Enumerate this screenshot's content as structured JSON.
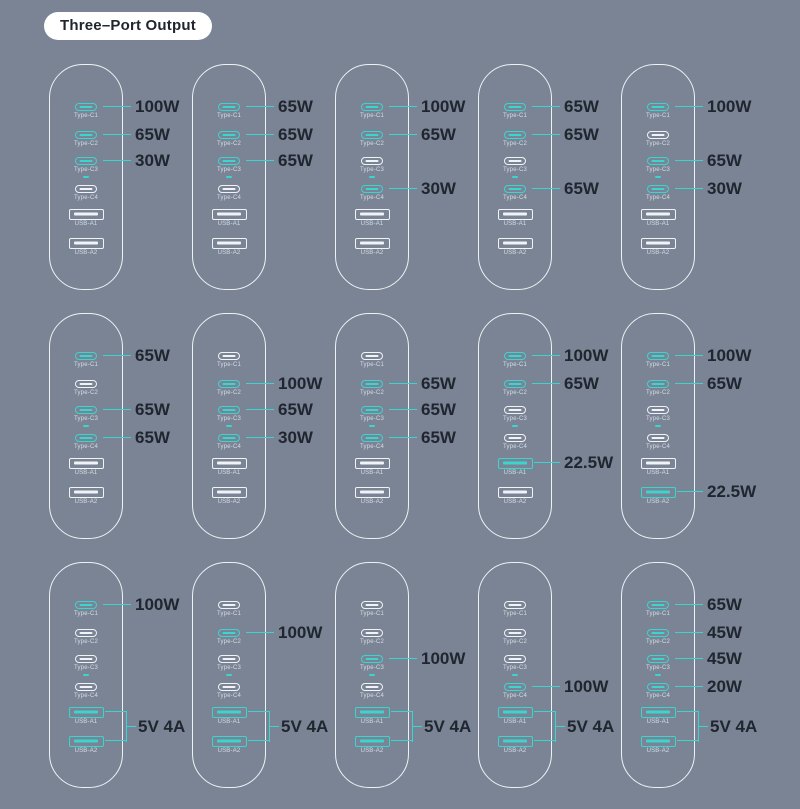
{
  "title": "Three–Port Output",
  "colors": {
    "background": "#7a8495",
    "accent": "#3bd5cf",
    "watt_text": "#20262f",
    "port_inactive": "#f0f4f7",
    "port_label": "#d5dce4",
    "body_outline": "#eef2f6",
    "title_bg": "#ffffff"
  },
  "ports": [
    {
      "key": "c1",
      "label": "Type-C1",
      "kind": "typec"
    },
    {
      "key": "c2",
      "label": "Type-C2",
      "kind": "typec"
    },
    {
      "key": "c3",
      "label": "Type-C3",
      "kind": "typec"
    },
    {
      "key": "c4",
      "label": "Type-C4",
      "kind": "typec"
    },
    {
      "key": "a1",
      "label": "USB-A1",
      "kind": "usba"
    },
    {
      "key": "a2",
      "label": "USB-A2",
      "kind": "usba"
    }
  ],
  "chargers": [
    {
      "c1": "100W",
      "c2": "65W",
      "c3": "30W",
      "c4": "",
      "a1": "",
      "a2": "",
      "usb_shared": ""
    },
    {
      "c1": "65W",
      "c2": "65W",
      "c3": "65W",
      "c4": "",
      "a1": "",
      "a2": "",
      "usb_shared": ""
    },
    {
      "c1": "100W",
      "c2": "65W",
      "c3": "",
      "c4": "30W",
      "a1": "",
      "a2": "",
      "usb_shared": ""
    },
    {
      "c1": "65W",
      "c2": "65W",
      "c3": "",
      "c4": "65W",
      "a1": "",
      "a2": "",
      "usb_shared": ""
    },
    {
      "c1": "100W",
      "c2": "",
      "c3": "65W",
      "c4": "30W",
      "a1": "",
      "a2": "",
      "usb_shared": ""
    },
    {
      "c1": "65W",
      "c2": "",
      "c3": "65W",
      "c4": "65W",
      "a1": "",
      "a2": "",
      "usb_shared": ""
    },
    {
      "c1": "",
      "c2": "100W",
      "c3": "65W",
      "c4": "30W",
      "a1": "",
      "a2": "",
      "usb_shared": ""
    },
    {
      "c1": "",
      "c2": "65W",
      "c3": "65W",
      "c4": "65W",
      "a1": "",
      "a2": "",
      "usb_shared": ""
    },
    {
      "c1": "100W",
      "c2": "65W",
      "c3": "",
      "c4": "",
      "a1": "22.5W",
      "a2": "",
      "usb_shared": ""
    },
    {
      "c1": "100W",
      "c2": "65W",
      "c3": "",
      "c4": "",
      "a1": "",
      "a2": "22.5W",
      "usb_shared": ""
    },
    {
      "c1": "100W",
      "c2": "",
      "c3": "",
      "c4": "",
      "a1": "",
      "a2": "",
      "usb_shared": "5V 4A"
    },
    {
      "c1": "",
      "c2": "100W",
      "c3": "",
      "c4": "",
      "a1": "",
      "a2": "",
      "usb_shared": "5V 4A"
    },
    {
      "c1": "",
      "c2": "",
      "c3": "100W",
      "c4": "",
      "a1": "",
      "a2": "",
      "usb_shared": "5V 4A"
    },
    {
      "c1": "",
      "c2": "",
      "c3": "",
      "c4": "100W",
      "a1": "",
      "a2": "",
      "usb_shared": "5V 4A"
    },
    {
      "c1": "65W",
      "c2": "45W",
      "c3": "45W",
      "c4": "20W",
      "a1": "",
      "a2": "",
      "usb_shared": "5V 4A"
    }
  ]
}
